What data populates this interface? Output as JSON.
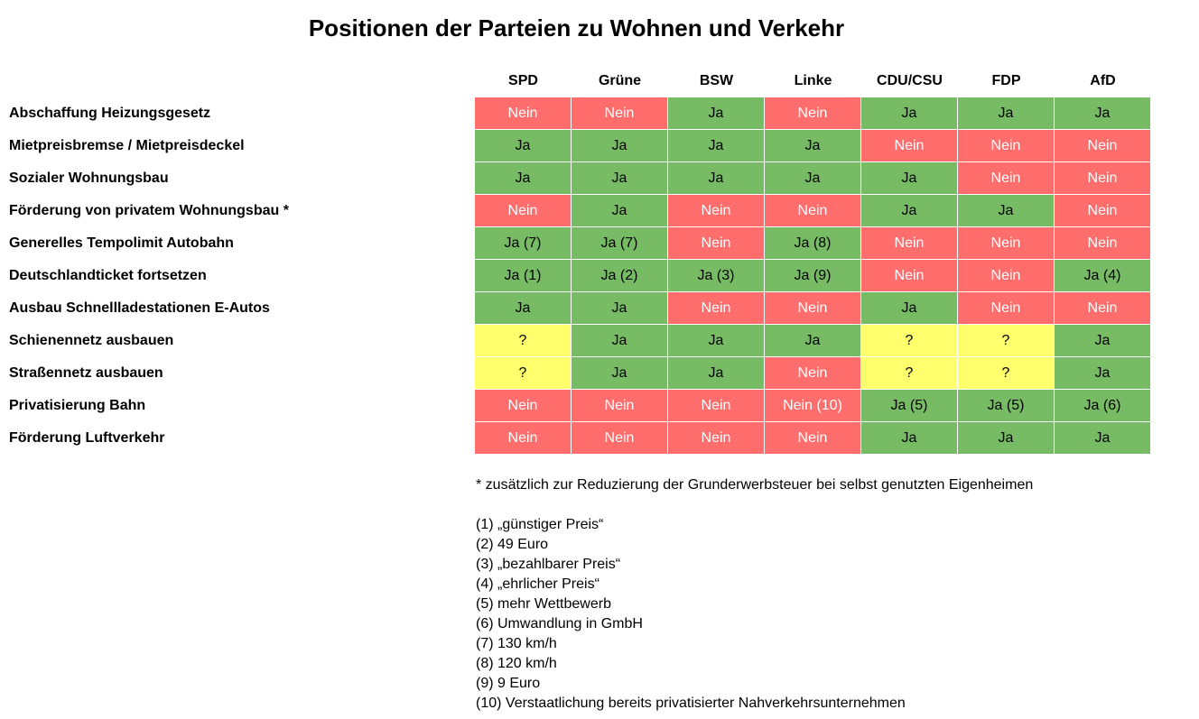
{
  "chart_data": {
    "type": "table",
    "title": "Positionen der Parteien zu Wohnen und Verkehr",
    "columns": [
      "SPD",
      "Grüne",
      "BSW",
      "Linke",
      "CDU/CSU",
      "FDP",
      "AfD"
    ],
    "rows": [
      {
        "label": "Abschaffung Heizungsgesetz",
        "values": [
          "Nein",
          "Nein",
          "Ja",
          "Nein",
          "Ja",
          "Ja",
          "Ja"
        ]
      },
      {
        "label": "Mietpreisbremse / Mietpreisdeckel",
        "values": [
          "Ja",
          "Ja",
          "Ja",
          "Ja",
          "Nein",
          "Nein",
          "Nein"
        ]
      },
      {
        "label": "Sozialer Wohnungsbau",
        "values": [
          "Ja",
          "Ja",
          "Ja",
          "Ja",
          "Ja",
          "Nein",
          "Nein"
        ]
      },
      {
        "label": "Förderung von privatem Wohnungsbau *",
        "values": [
          "Nein",
          "Ja",
          "Nein",
          "Nein",
          "Ja",
          "Ja",
          "Nein"
        ]
      },
      {
        "label": "Generelles Tempolimit Autobahn",
        "values": [
          "Ja (7)",
          "Ja (7)",
          "Nein",
          "Ja (8)",
          "Nein",
          "Nein",
          "Nein"
        ]
      },
      {
        "label": "Deutschlandticket fortsetzen",
        "values": [
          "Ja (1)",
          "Ja (2)",
          "Ja (3)",
          "Ja (9)",
          "Nein",
          "Nein",
          "Ja (4)"
        ]
      },
      {
        "label": "Ausbau Schnellladestationen E-Autos",
        "values": [
          "Ja",
          "Ja",
          "Nein",
          "Nein",
          "Ja",
          "Nein",
          "Nein"
        ]
      },
      {
        "label": "Schienennetz ausbauen",
        "values": [
          "?",
          "Ja",
          "Ja",
          "Ja",
          "?",
          "?",
          "Ja"
        ]
      },
      {
        "label": "Straßennetz ausbauen",
        "values": [
          "?",
          "Ja",
          "Ja",
          "Nein",
          "?",
          "?",
          "Ja"
        ]
      },
      {
        "label": "Privatisierung Bahn",
        "values": [
          "Nein",
          "Nein",
          "Nein",
          "Nein (10)",
          "Ja (5)",
          "Ja (5)",
          "Ja (6)"
        ]
      },
      {
        "label": "Förderung Luftverkehr",
        "values": [
          "Nein",
          "Nein",
          "Nein",
          "Nein",
          "Ja",
          "Ja",
          "Ja"
        ]
      }
    ],
    "colors": {
      "ja": "#77bc65",
      "nein": "#ff6d6d",
      "unknown": "#ffff6d"
    }
  },
  "notes": {
    "asterisk": "* zusätzlich zur Reduzierung der Grunderwerbsteuer bei selbst genutzten Eigenheimen",
    "footnotes": [
      "(1) „günstiger Preis“",
      "(2) 49 Euro",
      "(3) „bezahlbarer Preis“",
      "(4) „ehrlicher Preis“",
      "(5) mehr Wettbewerb",
      "(6) Umwandlung in GmbH",
      "(7) 130 km/h",
      "(8) 120 km/h",
      "(9) 9 Euro",
      "(10) Verstaatlichung bereits privatisierter Nahverkehrsunternehmen"
    ]
  }
}
